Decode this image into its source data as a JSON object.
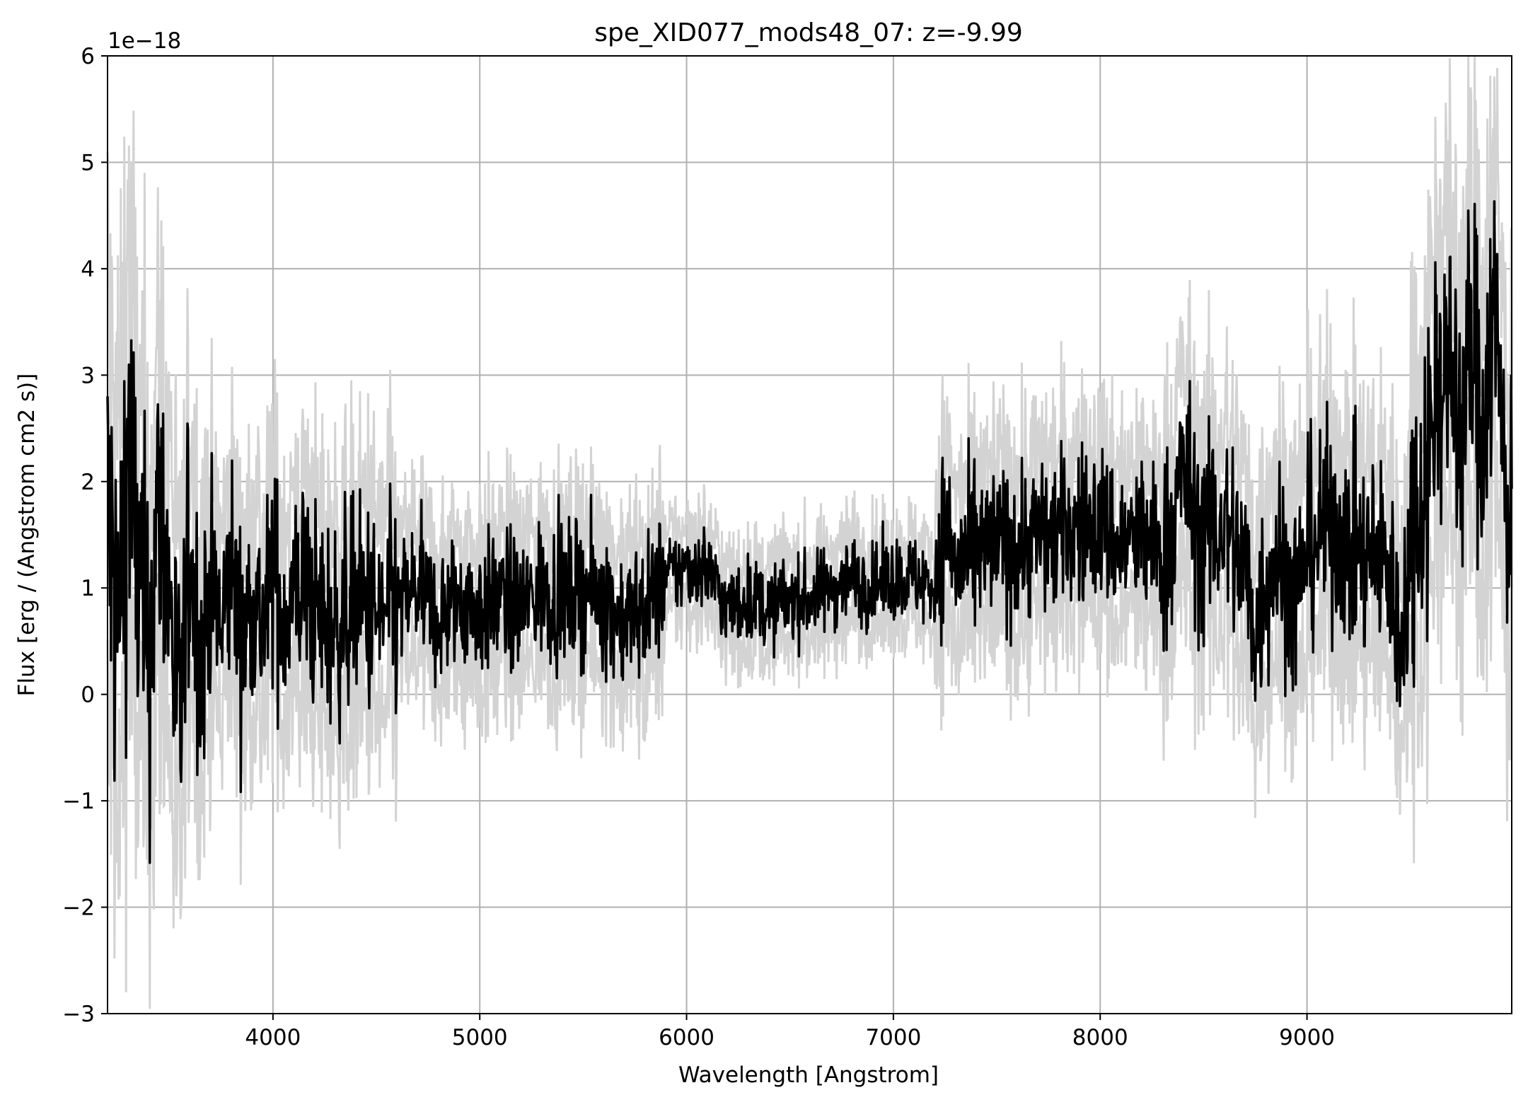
{
  "chart_data": {
    "type": "line",
    "title": "spe_XID077_mods48_07: z=-9.99",
    "xlabel": "Wavelength [Angstrom]",
    "ylabel": "Flux [erg / (Angstrom cm2 s)]",
    "y_offset_text": "1e−18",
    "xlim": [
      3200,
      9990
    ],
    "ylim": [
      -3,
      6
    ],
    "x_ticks": [
      4000,
      5000,
      6000,
      7000,
      8000,
      9000
    ],
    "x_tick_labels": [
      "4000",
      "5000",
      "6000",
      "7000",
      "8000",
      "9000"
    ],
    "y_ticks": [
      -3,
      -2,
      -1,
      0,
      1,
      2,
      3,
      4,
      5,
      6
    ],
    "y_tick_labels": [
      "−3",
      "−2",
      "−1",
      "0",
      "1",
      "2",
      "3",
      "4",
      "5",
      "6"
    ],
    "grid": true,
    "colors": {
      "spectrum": "#000000",
      "error_band": "#d3d3d3",
      "grid": "#b0b0b0"
    },
    "series": [
      {
        "role": "spectrum",
        "x": [
          3200,
          3250,
          3300,
          3350,
          3400,
          3450,
          3500,
          3550,
          3600,
          3650,
          3700,
          3750,
          3800,
          3850,
          3900,
          3950,
          4000,
          4050,
          4100,
          4150,
          4200,
          4300,
          4400,
          4500,
          4600,
          4700,
          4800,
          4900,
          5000,
          5100,
          5200,
          5300,
          5400,
          5500,
          5600,
          5700,
          5800,
          5900,
          6000,
          6100,
          6200,
          6300,
          6400,
          6500,
          6600,
          6700,
          6800,
          6900,
          7000,
          7100,
          7200,
          7250,
          7300,
          7400,
          7500,
          7600,
          7700,
          7800,
          7900,
          8000,
          8100,
          8200,
          8300,
          8350,
          8400,
          8450,
          8500,
          8600,
          8700,
          8750,
          8800,
          8850,
          8900,
          8950,
          9000,
          9100,
          9200,
          9300,
          9400,
          9450,
          9500,
          9600,
          9650,
          9700,
          9750,
          9800,
          9850,
          9900,
          9950,
          9990
        ],
        "y": [
          1.7,
          0.5,
          2.4,
          1.1,
          0.3,
          1.9,
          0.9,
          -0.4,
          1.5,
          0.2,
          1.1,
          0.5,
          1.3,
          0.4,
          1.0,
          0.6,
          1.2,
          0.7,
          0.9,
          1.1,
          0.8,
          0.6,
          0.9,
          0.7,
          0.8,
          1.0,
          0.7,
          0.9,
          0.8,
          0.9,
          0.8,
          1.0,
          0.9,
          1.0,
          0.9,
          0.7,
          0.8,
          1.1,
          1.2,
          1.2,
          0.8,
          0.9,
          0.8,
          0.9,
          0.9,
          1.0,
          1.1,
          1.0,
          1.1,
          1.1,
          1.0,
          1.6,
          1.2,
          1.3,
          1.4,
          1.4,
          1.5,
          1.5,
          1.6,
          1.6,
          1.4,
          1.5,
          1.3,
          1.5,
          2.2,
          1.7,
          1.5,
          1.6,
          1.2,
          0.5,
          1.1,
          1.3,
          1.1,
          0.9,
          1.4,
          1.6,
          1.4,
          1.3,
          1.2,
          0.4,
          1.4,
          2.5,
          3.2,
          2.9,
          2.6,
          3.3,
          2.5,
          3.7,
          2.2,
          1.6
        ]
      }
    ]
  }
}
